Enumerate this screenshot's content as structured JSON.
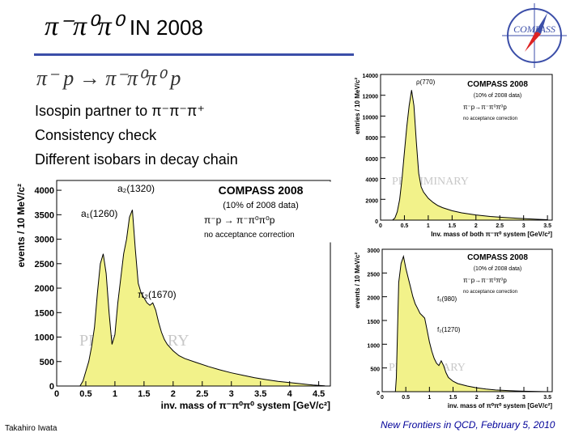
{
  "slide": {
    "title_symbols": "π⁻π⁰π⁰",
    "title_text": "IN  2008",
    "reaction": "π⁻ p → π⁻π⁰π⁰ p",
    "bullets": [
      "Isospin partner to  π⁻π⁻π⁺",
      "Consistency check",
      "Different isobars in decay chain"
    ],
    "footer_left": "Takahiro Iwata",
    "footer_right": "New Frontiers in QCD,  February 5, 2010",
    "logo_text": "COMPASS",
    "colors": {
      "fill": "#f2f28a",
      "outline": "#000000",
      "logo": "#3b4ea8",
      "rule": "#3b4ea8",
      "footer_right": "#000099"
    }
  },
  "chart_data": [
    {
      "id": "main",
      "type": "area",
      "x": [
        0.4,
        0.45,
        0.5,
        0.55,
        0.6,
        0.65,
        0.7,
        0.75,
        0.8,
        0.85,
        0.9,
        0.95,
        1.0,
        1.05,
        1.1,
        1.15,
        1.2,
        1.25,
        1.3,
        1.35,
        1.4,
        1.45,
        1.5,
        1.55,
        1.6,
        1.65,
        1.7,
        1.75,
        1.8,
        1.85,
        1.9,
        2.0,
        2.1,
        2.2,
        2.4,
        2.6,
        2.8,
        3.0,
        3.2,
        3.4,
        3.6,
        3.8,
        4.0,
        4.2,
        4.4,
        4.6
      ],
      "values": [
        0,
        100,
        300,
        500,
        800,
        1200,
        1900,
        2500,
        2700,
        2300,
        1500,
        850,
        1050,
        1700,
        2200,
        2700,
        3000,
        3450,
        3600,
        2800,
        2100,
        1900,
        1800,
        1700,
        1650,
        1700,
        1550,
        1300,
        1100,
        950,
        850,
        720,
        620,
        560,
        480,
        400,
        330,
        270,
        220,
        170,
        130,
        95,
        70,
        45,
        20,
        5
      ],
      "xlim": [
        0,
        4.7
      ],
      "ylim": [
        0,
        4200
      ],
      "xticks": [
        "0",
        "0.5",
        "1",
        "1.5",
        "2",
        "2.5",
        "3",
        "3.5",
        "4",
        "4.5"
      ],
      "yticks": [
        "0",
        "500",
        "1000",
        "1500",
        "2000",
        "2500",
        "3000",
        "3500",
        "4000"
      ],
      "xlabel": "inv. mass of  π⁻π⁰π⁰ system [GeV/c²]",
      "ylabel": "events / 10 MeV/c²",
      "legend_title": "COMPASS 2008",
      "legend_sub": "(10% of 2008 data)",
      "legend_reaction": "π⁻p → π⁻π⁰π⁰p",
      "legend_note": "no acceptance correction",
      "annotations": [
        "a₂(1320)",
        "a₁(1260)",
        "π₂(1670)"
      ],
      "watermark": "PRELIMINARY"
    },
    {
      "id": "two-pion",
      "type": "area",
      "x": [
        0.25,
        0.3,
        0.35,
        0.4,
        0.45,
        0.5,
        0.55,
        0.6,
        0.65,
        0.7,
        0.75,
        0.8,
        0.85,
        0.9,
        0.95,
        1.0,
        1.1,
        1.2,
        1.3,
        1.5,
        1.7,
        2.0,
        2.3,
        2.6,
        3.0,
        3.3,
        3.5
      ],
      "values": [
        0,
        200,
        800,
        2000,
        4000,
        6500,
        9000,
        11000,
        12500,
        11000,
        7500,
        4500,
        3200,
        2700,
        2400,
        2100,
        1700,
        1400,
        1200,
        900,
        700,
        500,
        350,
        250,
        150,
        80,
        40
      ],
      "xlim": [
        0,
        3.6
      ],
      "ylim": [
        0,
        14000
      ],
      "xticks": [
        "0",
        "0.5",
        "1",
        "1.5",
        "2",
        "2.5",
        "3",
        "3.5"
      ],
      "yticks": [
        "0",
        "2000",
        "4000",
        "6000",
        "8000",
        "10000",
        "12000",
        "14000"
      ],
      "xlabel": "Inv. mass of both  π⁻π⁰ system [GeV/c²]",
      "ylabel": "entries / 10 MeV/c²",
      "legend_title": "COMPASS 2008",
      "legend_sub": "(10% of 2008 data)",
      "legend_reaction": "π⁻p→π⁻π⁰π⁰p",
      "legend_note": "no acceptance correction",
      "annotations": [
        "ρ(770)"
      ],
      "watermark": "PRELIMINARY"
    },
    {
      "id": "pi0pi0",
      "type": "area",
      "x": [
        0.28,
        0.3,
        0.35,
        0.4,
        0.45,
        0.5,
        0.55,
        0.6,
        0.65,
        0.7,
        0.75,
        0.8,
        0.85,
        0.9,
        0.95,
        1.0,
        1.05,
        1.1,
        1.15,
        1.2,
        1.25,
        1.3,
        1.35,
        1.4,
        1.5,
        1.6,
        1.8,
        2.0,
        2.2,
        2.4,
        2.7,
        3.0,
        3.3,
        3.5
      ],
      "values": [
        0,
        300,
        2300,
        2700,
        2850,
        2600,
        2400,
        2200,
        2000,
        1850,
        1750,
        1650,
        1600,
        1550,
        1300,
        1050,
        850,
        700,
        600,
        550,
        650,
        550,
        400,
        300,
        220,
        170,
        120,
        80,
        55,
        35,
        20,
        10,
        5,
        0
      ],
      "xlim": [
        0,
        3.6
      ],
      "ylim": [
        0,
        3000
      ],
      "xticks": [
        "0",
        "0.5",
        "1",
        "1.5",
        "2",
        "2.5",
        "3",
        "3.5"
      ],
      "yticks": [
        "0",
        "500",
        "1000",
        "1500",
        "2000",
        "2500",
        "3000"
      ],
      "xlabel": "inv. mass of  π⁰π⁰ system [GeV/c²]",
      "ylabel": "events / 10 MeV/c²",
      "legend_title": "COMPASS 2008",
      "legend_sub": "(10% of 2008 data)",
      "legend_reaction": "π⁻p→π⁻π⁰π⁰p",
      "legend_note": "no acceptance correction",
      "annotations": [
        "f₀(980)",
        "f₂(1270)"
      ],
      "watermark": "PRELIMINARY"
    }
  ]
}
